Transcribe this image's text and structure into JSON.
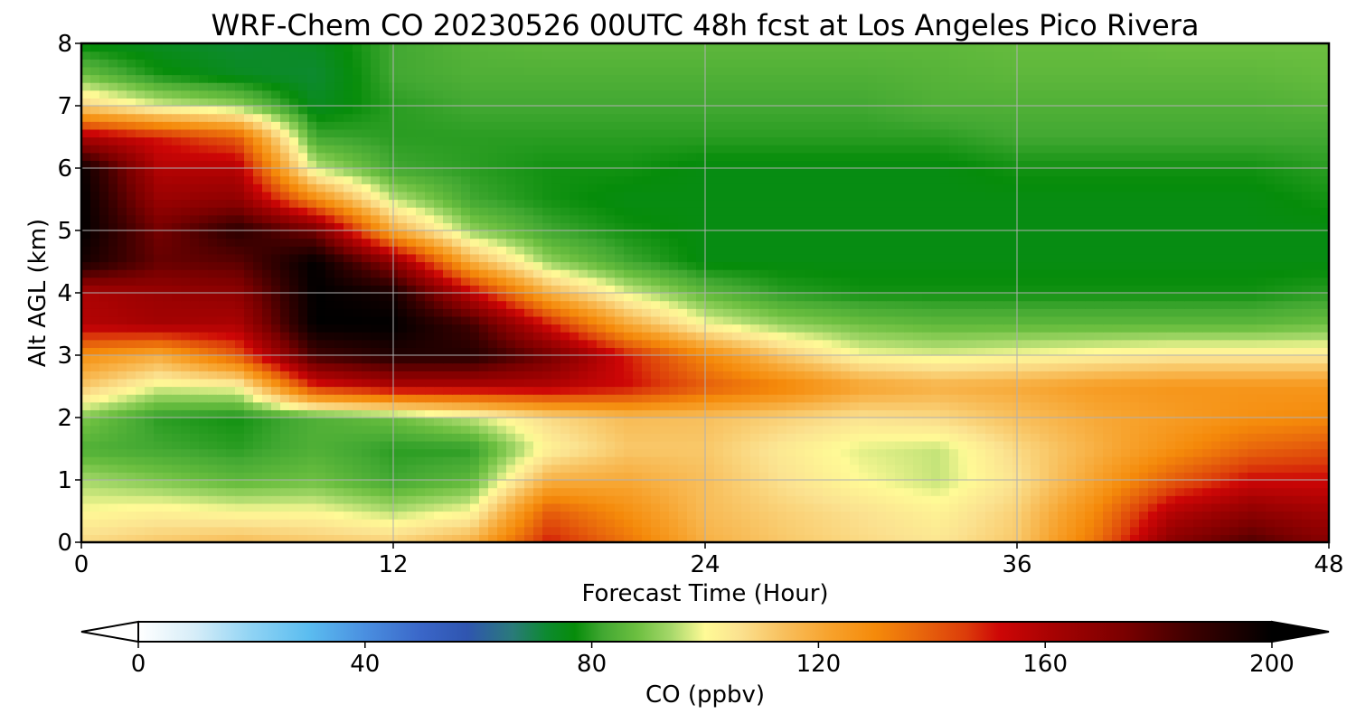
{
  "title": "WRF-Chem CO  20230526 00UTC 48h fcst at Los Angeles Pico Rivera",
  "chart_data": {
    "type": "heatmap",
    "title": "WRF-Chem CO  20230526 00UTC 48h fcst at Los Angeles Pico Rivera",
    "xlabel": "Forecast Time (Hour)",
    "ylabel": "Alt AGL (km)",
    "xlim": [
      0,
      48
    ],
    "ylim": [
      0,
      8
    ],
    "xticks": [
      0,
      12,
      24,
      36,
      48
    ],
    "yticks": [
      0,
      1,
      2,
      3,
      4,
      5,
      6,
      7,
      8
    ],
    "grid": true,
    "x": [
      0,
      3,
      6,
      9,
      12,
      15,
      18,
      21,
      24,
      27,
      30,
      33,
      36,
      39,
      42,
      45,
      48
    ],
    "y": [
      0,
      0.5,
      1,
      1.5,
      2,
      2.5,
      3,
      3.5,
      4,
      4.5,
      5,
      5.5,
      6,
      6.5,
      7,
      7.5,
      8
    ],
    "z": [
      [
        108,
        112,
        115,
        112,
        110,
        118,
        150,
        135,
        118,
        112,
        108,
        105,
        112,
        135,
        170,
        182,
        170
      ],
      [
        100,
        102,
        100,
        100,
        95,
        100,
        140,
        128,
        115,
        110,
        106,
        102,
        110,
        130,
        158,
        168,
        162
      ],
      [
        94,
        90,
        86,
        88,
        82,
        86,
        118,
        120,
        114,
        106,
        100,
        96,
        106,
        122,
        140,
        152,
        152
      ],
      [
        84,
        82,
        80,
        84,
        80,
        80,
        102,
        112,
        112,
        104,
        98,
        96,
        108,
        118,
        128,
        138,
        142
      ],
      [
        90,
        80,
        78,
        84,
        88,
        96,
        108,
        115,
        114,
        110,
        106,
        108,
        114,
        120,
        124,
        128,
        130
      ],
      [
        112,
        98,
        100,
        148,
        158,
        158,
        158,
        152,
        140,
        132,
        122,
        118,
        120,
        124,
        126,
        126,
        126
      ],
      [
        128,
        120,
        140,
        185,
        192,
        192,
        175,
        150,
        130,
        112,
        100,
        98,
        100,
        102,
        104,
        104,
        104
      ],
      [
        158,
        162,
        160,
        200,
        200,
        185,
        150,
        120,
        100,
        92,
        88,
        86,
        86,
        86,
        86,
        86,
        88
      ],
      [
        160,
        165,
        168,
        200,
        195,
        155,
        118,
        98,
        86,
        80,
        78,
        78,
        78,
        78,
        78,
        78,
        80
      ],
      [
        195,
        178,
        180,
        200,
        168,
        118,
        92,
        82,
        76,
        76,
        76,
        76,
        76,
        76,
        76,
        76,
        76
      ],
      [
        200,
        175,
        190,
        175,
        120,
        92,
        82,
        78,
        76,
        76,
        76,
        76,
        76,
        76,
        76,
        76,
        76
      ],
      [
        200,
        165,
        168,
        130,
        96,
        82,
        78,
        76,
        76,
        76,
        76,
        76,
        76,
        76,
        76,
        76,
        78
      ],
      [
        198,
        158,
        158,
        96,
        82,
        80,
        78,
        78,
        76,
        76,
        76,
        76,
        78,
        78,
        78,
        78,
        80
      ],
      [
        160,
        150,
        140,
        82,
        80,
        80,
        80,
        80,
        80,
        80,
        80,
        80,
        82,
        82,
        82,
        82,
        82
      ],
      [
        110,
        98,
        92,
        74,
        80,
        82,
        82,
        82,
        82,
        82,
        82,
        84,
        84,
        84,
        84,
        84,
        85
      ],
      [
        88,
        78,
        74,
        72,
        82,
        84,
        84,
        84,
        84,
        84,
        84,
        85,
        86,
        86,
        86,
        86,
        87
      ],
      [
        76,
        74,
        72,
        74,
        82,
        85,
        86,
        86,
        86,
        86,
        86,
        86,
        87,
        87,
        88,
        88,
        88
      ]
    ],
    "colorbar": {
      "label": "CO  (ppbv)",
      "min": 0,
      "max": 200,
      "ticks": [
        0,
        40,
        80,
        120,
        160,
        200
      ],
      "extend": "both",
      "colormap": [
        [
          0,
          "#ffffff"
        ],
        [
          10,
          "#d6edf8"
        ],
        [
          20,
          "#8fd3f4"
        ],
        [
          30,
          "#5bbdf0"
        ],
        [
          40,
          "#4a8fe0"
        ],
        [
          50,
          "#3a66c8"
        ],
        [
          58,
          "#2f55b0"
        ],
        [
          66,
          "#2a7a7a"
        ],
        [
          72,
          "#0d8a30"
        ],
        [
          77,
          "#068c0a"
        ],
        [
          82,
          "#42a832"
        ],
        [
          88,
          "#6cbf40"
        ],
        [
          94,
          "#a6d86a"
        ],
        [
          100,
          "#fffa96"
        ],
        [
          106,
          "#fbe290"
        ],
        [
          114,
          "#f8bf5c"
        ],
        [
          122,
          "#f7a22c"
        ],
        [
          130,
          "#f58a0a"
        ],
        [
          138,
          "#e8660c"
        ],
        [
          146,
          "#dc3c0a"
        ],
        [
          152,
          "#cd0606"
        ],
        [
          162,
          "#a40202"
        ],
        [
          174,
          "#7a0000"
        ],
        [
          186,
          "#3c0000"
        ],
        [
          200,
          "#000000"
        ]
      ]
    }
  }
}
